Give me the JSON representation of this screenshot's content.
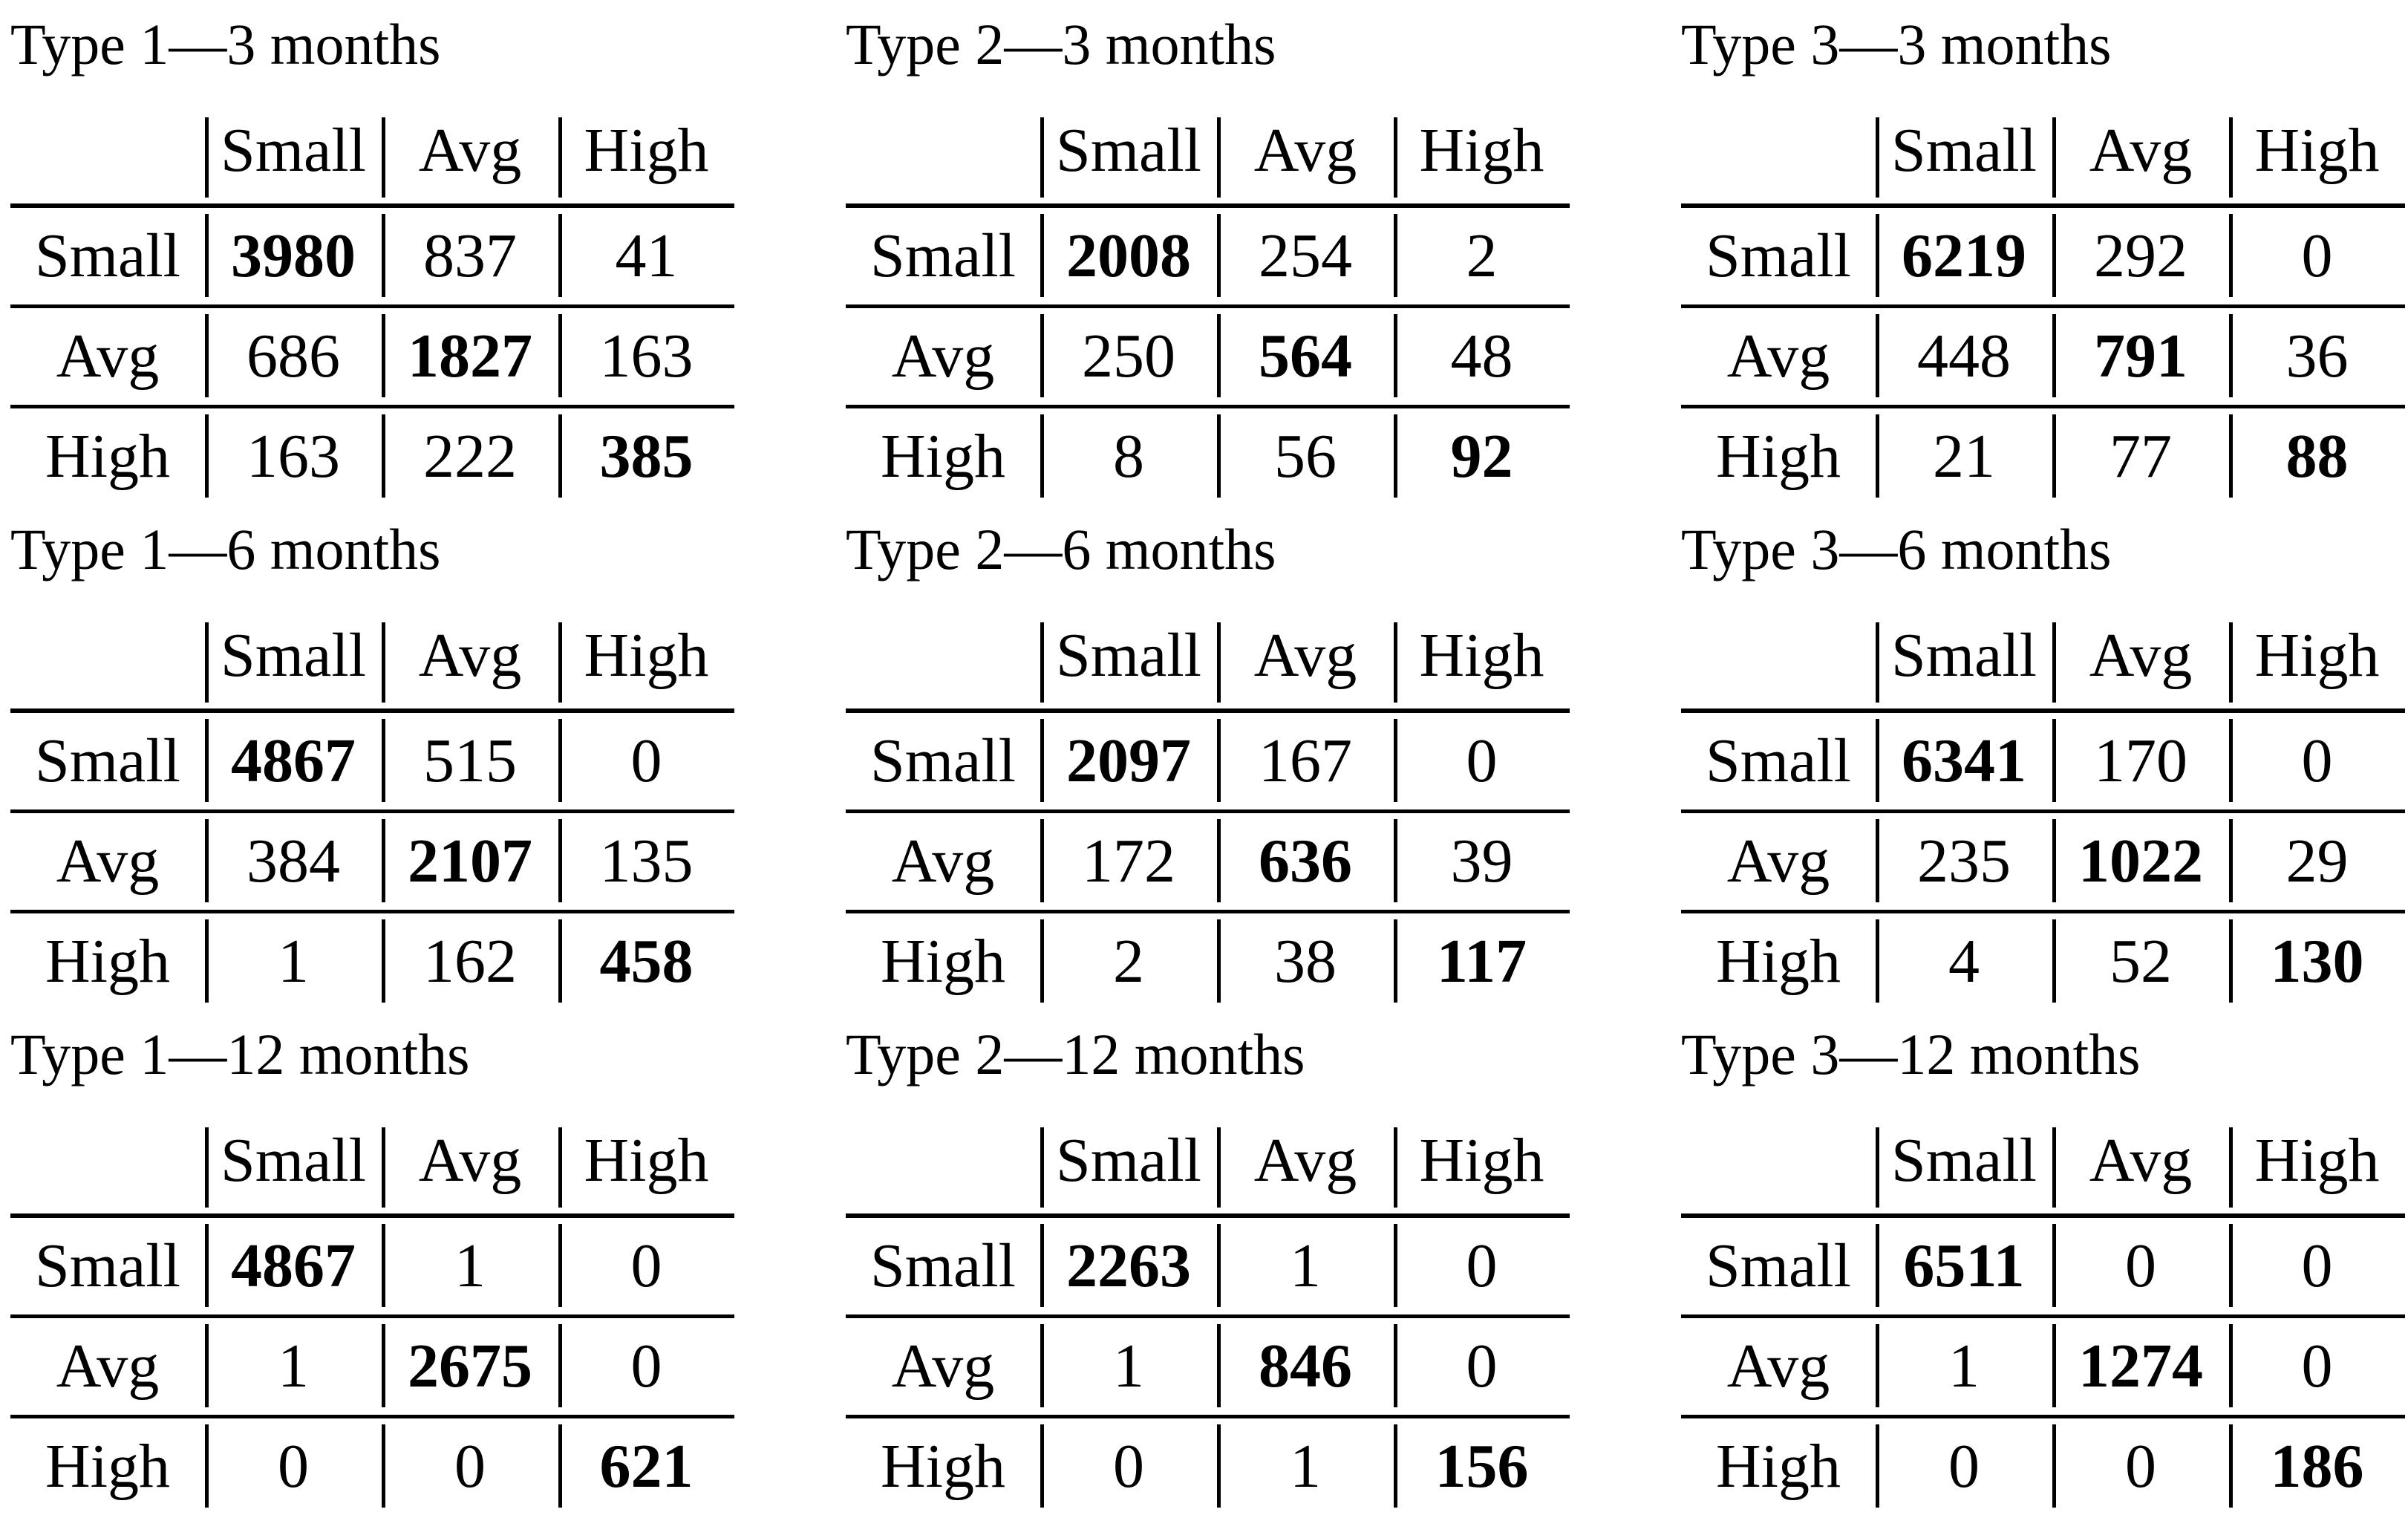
{
  "page": {
    "background_color": "#ffffff",
    "text_color": "#000000",
    "description": "Nine confusion matrices comparing predicted vs actual classes (Small / Avg / High) for Type 1-3 at 3, 6 and 12 months; diagonal counts are bold"
  },
  "col_headers": [
    "Small",
    "Avg",
    "High"
  ],
  "row_headers": [
    "Small",
    "Avg",
    "High"
  ],
  "tables": [
    {
      "title": "Type 1—3 months",
      "rows": [
        [
          "3980",
          "837",
          "41"
        ],
        [
          "686",
          "1827",
          "163"
        ],
        [
          "163",
          "222",
          "385"
        ]
      ]
    },
    {
      "title": "Type 2—3 months",
      "rows": [
        [
          "2008",
          "254",
          "2"
        ],
        [
          "250",
          "564",
          "48"
        ],
        [
          "8",
          "56",
          "92"
        ]
      ]
    },
    {
      "title": "Type 3—3 months",
      "rows": [
        [
          "6219",
          "292",
          "0"
        ],
        [
          "448",
          "791",
          "36"
        ],
        [
          "21",
          "77",
          "88"
        ]
      ]
    },
    {
      "title": "Type 1—6 months",
      "rows": [
        [
          "4867",
          "515",
          "0"
        ],
        [
          "384",
          "2107",
          "135"
        ],
        [
          "1",
          "162",
          "458"
        ]
      ]
    },
    {
      "title": "Type 2—6 months",
      "rows": [
        [
          "2097",
          "167",
          "0"
        ],
        [
          "172",
          "636",
          "39"
        ],
        [
          "2",
          "38",
          "117"
        ]
      ]
    },
    {
      "title": "Type 3—6 months",
      "rows": [
        [
          "6341",
          "170",
          "0"
        ],
        [
          "235",
          "1022",
          "29"
        ],
        [
          "4",
          "52",
          "130"
        ]
      ]
    },
    {
      "title": "Type 1—12 months",
      "rows": [
        [
          "4867",
          "1",
          "0"
        ],
        [
          "1",
          "2675",
          "0"
        ],
        [
          "0",
          "0",
          "621"
        ]
      ]
    },
    {
      "title": "Type 2—12 months",
      "rows": [
        [
          "2263",
          "1",
          "0"
        ],
        [
          "1",
          "846",
          "0"
        ],
        [
          "0",
          "1",
          "156"
        ]
      ]
    },
    {
      "title": "Type 3—12 months",
      "rows": [
        [
          "6511",
          "0",
          "0"
        ],
        [
          "1",
          "1274",
          "0"
        ],
        [
          "0",
          "0",
          "186"
        ]
      ]
    }
  ]
}
